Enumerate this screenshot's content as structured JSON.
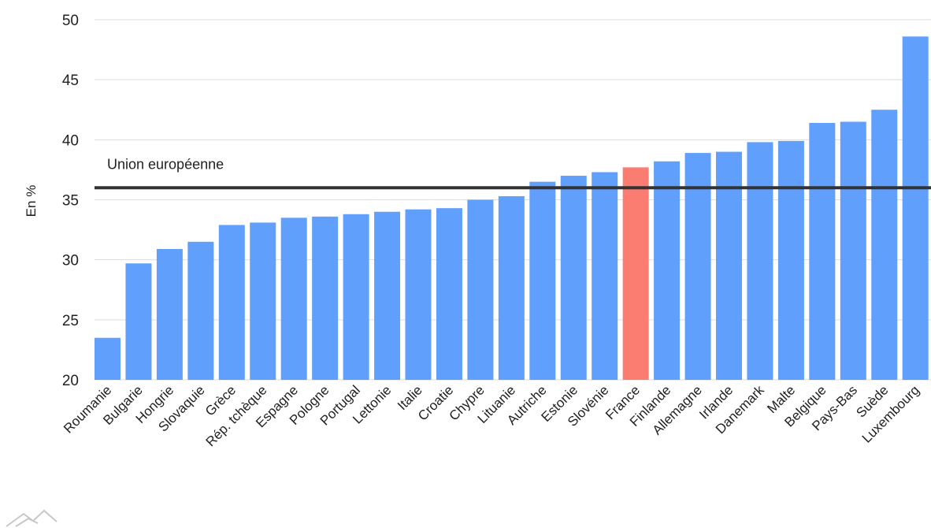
{
  "chart_data": {
    "type": "bar",
    "ylabel": "En %",
    "ylim": [
      20,
      50
    ],
    "yticks": [
      "20",
      "25",
      "30",
      "35",
      "40",
      "45",
      "50"
    ],
    "grid": true,
    "categories": [
      "Roumanie",
      "Bulgarie",
      "Hongrie",
      "Slovaquie",
      "Grèce",
      "Rép. tchèque",
      "Espagne",
      "Pologne",
      "Portugal",
      "Lettonie",
      "Italie",
      "Croatie",
      "Chypre",
      "Lituanie",
      "Autriche",
      "Estonie",
      "Slovénie",
      "France",
      "Finlande",
      "Allemagne",
      "Irlande",
      "Danemark",
      "Malte",
      "Belgique",
      "Pays-Bas",
      "Suède",
      "Luxembourg"
    ],
    "values": [
      23.5,
      29.7,
      30.9,
      31.5,
      32.9,
      33.1,
      33.5,
      33.6,
      33.8,
      34.0,
      34.2,
      34.3,
      35.0,
      35.3,
      36.5,
      37.0,
      37.3,
      37.7,
      38.2,
      38.9,
      39.0,
      39.8,
      39.9,
      41.4,
      41.5,
      42.5,
      48.6
    ],
    "highlight": "France",
    "colors": {
      "bar": "#619ffc",
      "highlight": "#fb7d72",
      "reference_line": "#333333",
      "grid": "#dddddd"
    },
    "reference_line": {
      "label": "Union européenne",
      "value": 36
    }
  }
}
